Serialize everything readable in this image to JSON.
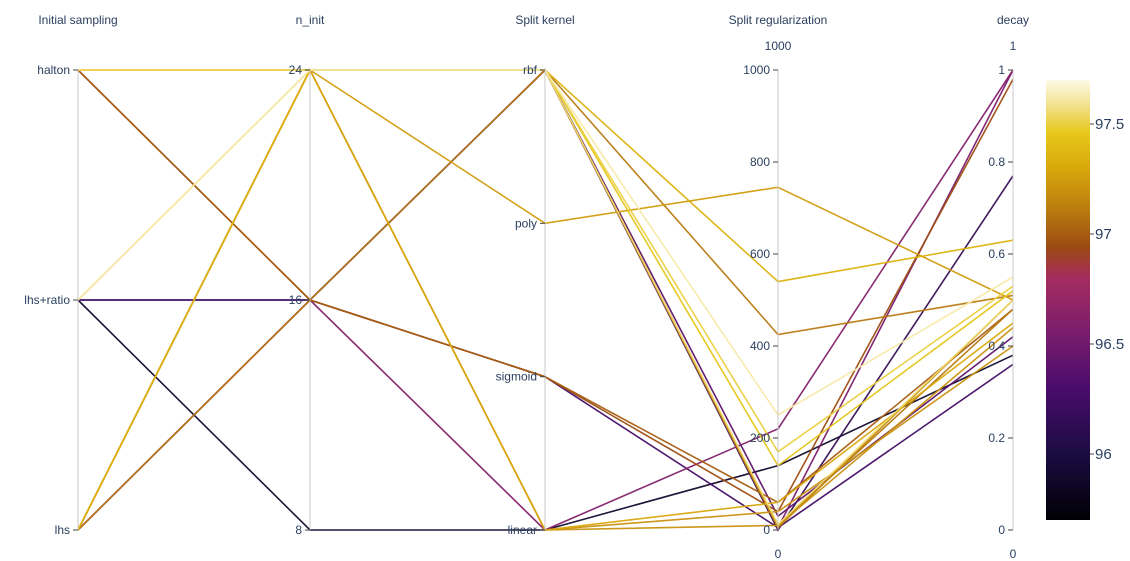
{
  "chart_data": {
    "type": "parallel_coordinates",
    "title": "",
    "axes": [
      {
        "id": "sampling",
        "label": "Initial sampling",
        "kind": "categorical",
        "categories": [
          "halton",
          "lhs+ratio",
          "lhs"
        ],
        "category_values": [
          2,
          1,
          0
        ],
        "range": [
          0,
          2
        ]
      },
      {
        "id": "n_init",
        "label": "n_init",
        "kind": "categorical",
        "categories": [
          "24",
          "16",
          "8"
        ],
        "category_values": [
          24,
          16,
          8
        ],
        "range": [
          8,
          24
        ]
      },
      {
        "id": "kernel",
        "label": "Split kernel",
        "kind": "categorical",
        "categories": [
          "rbf",
          "poly",
          "sigmoid",
          "linear"
        ],
        "category_values": [
          3,
          2,
          1,
          0
        ],
        "range": [
          0,
          3
        ]
      },
      {
        "id": "reg",
        "label": "Split regularization",
        "kind": "numeric",
        "range": [
          0,
          1000
        ],
        "range_labels": [
          "1000",
          "0"
        ],
        "tick_labels": [
          "1000",
          "800",
          "600",
          "400",
          "200",
          "0"
        ],
        "tick_values": [
          1000,
          800,
          600,
          400,
          200,
          0
        ]
      },
      {
        "id": "decay",
        "label": "decay",
        "kind": "numeric",
        "range": [
          0,
          1
        ],
        "range_labels": [
          "1",
          "0"
        ],
        "tick_labels": [
          "1",
          "0.8",
          "0.6",
          "0.4",
          "0.2",
          "0"
        ],
        "tick_values": [
          1,
          0.8,
          0.6,
          0.4,
          0.2,
          0
        ]
      }
    ],
    "colorscale": {
      "name": "Inferno-like",
      "range": [
        95.7,
        97.7
      ],
      "tick_labels": [
        "97.5",
        "97",
        "96.5",
        "96"
      ],
      "tick_values": [
        97.5,
        97,
        96.5,
        96
      ],
      "stops": [
        [
          0.0,
          "#000004"
        ],
        [
          0.15,
          "#1b0c41"
        ],
        [
          0.3,
          "#4a0c6b"
        ],
        [
          0.42,
          "#781c6d"
        ],
        [
          0.55,
          "#a52c60"
        ],
        [
          0.62,
          "#9b4a12"
        ],
        [
          0.7,
          "#b8790f"
        ],
        [
          0.8,
          "#d9a80c"
        ],
        [
          0.88,
          "#e6c81a"
        ],
        [
          0.94,
          "#f2e08a"
        ],
        [
          1.0,
          "#fcfbe6"
        ]
      ]
    },
    "lines": [
      {
        "sampling": 2,
        "n_init": 24,
        "kernel": 3,
        "reg": 12,
        "decay": 0.5,
        "score": 97.55
      },
      {
        "sampling": 2,
        "n_init": 24,
        "kernel": 3,
        "reg": 140,
        "decay": 0.52,
        "score": 97.45
      },
      {
        "sampling": 2,
        "n_init": 24,
        "kernel": 2,
        "reg": 745,
        "decay": 0.5,
        "score": 97.25
      },
      {
        "sampling": 2,
        "n_init": 24,
        "kernel": 0,
        "reg": 10,
        "decay": 0.44,
        "score": 97.2
      },
      {
        "sampling": 2,
        "n_init": 16,
        "kernel": 1,
        "reg": 40,
        "decay": 0.98,
        "score": 96.95
      },
      {
        "sampling": 2,
        "n_init": 16,
        "kernel": 1,
        "reg": 60,
        "decay": 0.48,
        "score": 97.0
      },
      {
        "sampling": 1,
        "n_init": 24,
        "kernel": 3,
        "reg": 250,
        "decay": 0.55,
        "score": 97.62
      },
      {
        "sampling": 1,
        "n_init": 24,
        "kernel": 3,
        "reg": 170,
        "decay": 0.53,
        "score": 97.5
      },
      {
        "sampling": 1,
        "n_init": 16,
        "kernel": 3,
        "reg": 0,
        "decay": 0.77,
        "score": 96.15
      },
      {
        "sampling": 1,
        "n_init": 16,
        "kernel": 1,
        "reg": 5,
        "decay": 0.36,
        "score": 96.25
      },
      {
        "sampling": 1,
        "n_init": 8,
        "kernel": 0,
        "reg": 140,
        "decay": 0.38,
        "score": 95.9
      },
      {
        "sampling": 0,
        "n_init": 24,
        "kernel": 3,
        "reg": 5,
        "decay": 1.0,
        "score": 96.55
      },
      {
        "sampling": 0,
        "n_init": 24,
        "kernel": 3,
        "reg": 540,
        "decay": 0.63,
        "score": 97.35
      },
      {
        "sampling": 0,
        "n_init": 24,
        "kernel": 3,
        "reg": 425,
        "decay": 0.51,
        "score": 97.1
      },
      {
        "sampling": 0,
        "n_init": 24,
        "kernel": 3,
        "reg": 5,
        "decay": 0.5,
        "score": 97.15
      },
      {
        "sampling": 0,
        "n_init": 24,
        "kernel": 0,
        "reg": 60,
        "decay": 0.45,
        "score": 97.3
      },
      {
        "sampling": 0,
        "n_init": 24,
        "kernel": 0,
        "reg": 40,
        "decay": 0.4,
        "score": 97.2
      },
      {
        "sampling": 0,
        "n_init": 16,
        "kernel": 3,
        "reg": 30,
        "decay": 0.42,
        "score": 96.4
      },
      {
        "sampling": 0,
        "n_init": 16,
        "kernel": 0,
        "reg": 220,
        "decay": 1.0,
        "score": 96.6
      },
      {
        "sampling": 0,
        "n_init": 16,
        "kernel": 3,
        "reg": 10,
        "decay": 0.48,
        "score": 97.1
      }
    ]
  }
}
